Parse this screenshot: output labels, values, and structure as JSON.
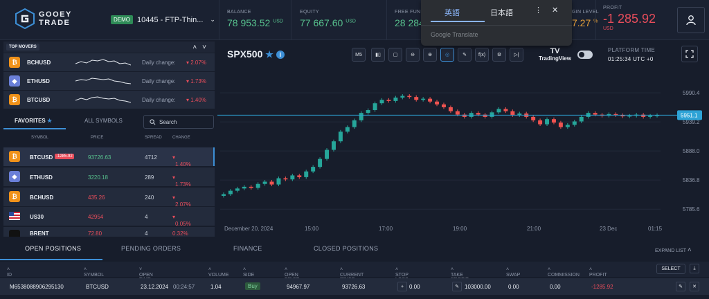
{
  "brand": {
    "line1": "GOOEY",
    "line2": "TRADE"
  },
  "account": {
    "badge": "DEMO",
    "name": "10445 - FTP-Thin..."
  },
  "stats": [
    {
      "label": "BALANCE",
      "value": "78 953.52",
      "unit": "USD"
    },
    {
      "label": "EQUITY",
      "value": "77 667.60",
      "unit": "USD"
    },
    {
      "label": "FREE FUND",
      "value": "28 284"
    },
    {
      "label": "GIN LEVEL",
      "value": "7.27",
      "unit": "%"
    },
    {
      "label": "PROFIT",
      "value": "-1 285.92",
      "unit": "USD"
    }
  ],
  "translate": {
    "tab1": "英語",
    "tab2": "日本語",
    "footer": "Google Translate"
  },
  "movers": {
    "title": "TOP MOVERS",
    "daily_label": "Daily change:",
    "items": [
      {
        "symbol": "BCHUSD",
        "coin": "btc",
        "change": "2.07%"
      },
      {
        "symbol": "ETHUSD",
        "coin": "eth",
        "change": "1.73%"
      },
      {
        "symbol": "BTCUSD",
        "coin": "btc",
        "change": "1.40%"
      }
    ]
  },
  "watch_tabs": {
    "favorites": "FAVORITES",
    "all": "ALL SYMBOLS",
    "search_placeholder": "Search"
  },
  "watchlist": {
    "headers": [
      "SYMBOL",
      "PRICE",
      "SPREAD",
      "CHANGE"
    ],
    "rows": [
      {
        "symbol": "BTCUSD",
        "badge": "-1285.92",
        "price": "93726.63",
        "spread": "4712",
        "change": "1.40%",
        "price_dir": "up"
      },
      {
        "symbol": "ETHUSD",
        "badge": "",
        "price": "3220.18",
        "spread": "289",
        "change": "1.73%",
        "price_dir": "up"
      },
      {
        "symbol": "BCHUSD",
        "badge": "",
        "price": "435.26",
        "spread": "240",
        "change": "2.07%",
        "price_dir": "dn"
      },
      {
        "symbol": "US30",
        "badge": "",
        "price": "42954",
        "spread": "4",
        "change": "0.05%",
        "price_dir": "dn"
      },
      {
        "symbol": "BRENT",
        "badge": "",
        "price": "72.80",
        "spread": "4",
        "change": "0.32%",
        "price_dir": "dn"
      }
    ]
  },
  "chart_header": {
    "symbol": "SPX500",
    "timeframe": "M5",
    "tradingview": "TradingView",
    "platform_time_label": "PLATFORM TIME",
    "platform_time": "01:25:34 UTC +0"
  },
  "chart_data": {
    "type": "line",
    "title": "",
    "ylim": [
      5770,
      6010
    ],
    "y_ticks": [
      "5990.4",
      "5939.2",
      "5888.0",
      "5836.8",
      "5785.6"
    ],
    "x_ticks": [
      "December 20, 2024",
      "15:00",
      "17:00",
      "19:00",
      "21:00",
      "23 Dec",
      "01:15"
    ],
    "current_price": "5951.1",
    "current_label_secondary": "5939.2",
    "series": [
      {
        "values": [
          5812,
          5818,
          5822,
          5825,
          5823,
          5830,
          5834,
          5829,
          5840,
          5838,
          5845,
          5842,
          5852,
          5860,
          5874,
          5890,
          5905,
          5922,
          5930,
          5942,
          5955,
          5960,
          5972,
          5978,
          5976,
          5982,
          5985,
          5983,
          5978,
          5980,
          5975,
          5970,
          5965,
          5958,
          5952,
          5948,
          5955,
          5952,
          5948,
          5956,
          5962,
          5958,
          5951,
          5954,
          5948,
          5942,
          5935,
          5944,
          5938,
          5930,
          5934,
          5940,
          5948,
          5955,
          5952,
          5950,
          5953,
          5951,
          5949,
          5950,
          5952,
          5948,
          5950,
          5951
        ]
      }
    ]
  },
  "bottom_tabs": {
    "open": "OPEN POSITIONS",
    "pending": "PENDING ORDERS",
    "finance": "FINANCE",
    "closed": "CLOSED POSITIONS",
    "expand": "EXPAND LIST"
  },
  "table": {
    "headers": [
      "ID",
      "SYMBOL",
      "OPEN TIME",
      "VOLUME",
      "SIDE",
      "OPEN PRICE",
      "CURRENT PRICE",
      "STOP LOSS",
      "TAKE PROFIT",
      "SWAP",
      "COMMISSION",
      "PROFIT"
    ],
    "select_label": "SELECT",
    "row": {
      "id": "M6538088906295130",
      "symbol": "BTCUSD",
      "open_date": "23.12.2024",
      "open_time": "00:24:57",
      "volume": "1.04",
      "side": "Buy",
      "open_price": "94967.97",
      "current_price": "93726.63",
      "stop_loss": "0.00",
      "take_profit": "103000.00",
      "swap": "0.00",
      "commission": "0.00",
      "profit": "-1285.92"
    }
  }
}
